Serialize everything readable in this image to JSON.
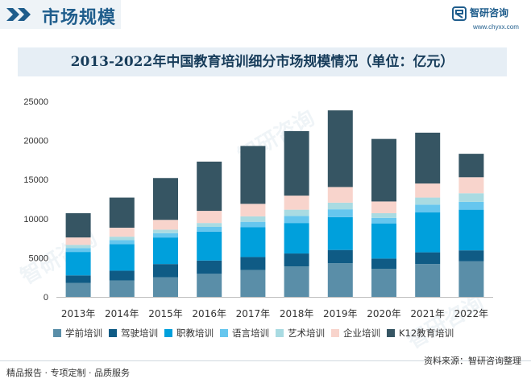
{
  "header": {
    "section_title": "市场规模",
    "logo_name": "智研咨询",
    "logo_url": "www.chyxx.com"
  },
  "watermarks": [
    "智研咨询",
    "智研咨询",
    "智研咨询"
  ],
  "footer": {
    "left": "精品报告 · 专项定制 · 品质服务",
    "right": "资料来源：智研咨询整理"
  },
  "colors": {
    "学前培训": "#5a8ea8",
    "驾驶培训": "#0f5b85",
    "职教培训": "#00a0dc",
    "语言培训": "#66c6ee",
    "艺术培训": "#a9dbe2",
    "企业培训": "#f8d4cc",
    "K12教育培训": "#365563"
  },
  "chart_data": {
    "type": "bar",
    "stacked": true,
    "title": "2013-2022年中国教育培训细分市场规模情况（单位：亿元）",
    "categories": [
      "2013年",
      "2014年",
      "2015年",
      "2016年",
      "2017年",
      "2018年",
      "2019年",
      "2020年",
      "2021年",
      "2022年"
    ],
    "ylim": [
      0,
      25000
    ],
    "yticks": [
      0,
      5000,
      10000,
      15000,
      20000,
      25000
    ],
    "grid": false,
    "legend_position": "bottom",
    "series": [
      {
        "name": "学前培训",
        "values": [
          1800,
          2100,
          2500,
          2950,
          3450,
          3900,
          4300,
          3600,
          4200,
          4550
        ]
      },
      {
        "name": "驾驶培训",
        "values": [
          950,
          1250,
          1700,
          1700,
          1650,
          1650,
          1700,
          1300,
          1500,
          1400
        ]
      },
      {
        "name": "职教培训",
        "values": [
          3000,
          3400,
          3400,
          3700,
          3800,
          3900,
          4200,
          4500,
          5100,
          5200
        ]
      },
      {
        "name": "语言培训",
        "values": [
          500,
          500,
          550,
          600,
          700,
          900,
          1000,
          700,
          1000,
          1000
        ]
      },
      {
        "name": "艺术培训",
        "values": [
          400,
          450,
          450,
          500,
          700,
          800,
          850,
          600,
          900,
          1100
        ]
      },
      {
        "name": "企业培训",
        "values": [
          950,
          1150,
          1250,
          1550,
          1600,
          1800,
          2000,
          1500,
          1800,
          2050
        ]
      },
      {
        "name": "K12教育培训",
        "values": [
          3100,
          3850,
          5350,
          6300,
          7400,
          8250,
          9800,
          8000,
          6500,
          3000
        ]
      }
    ]
  }
}
